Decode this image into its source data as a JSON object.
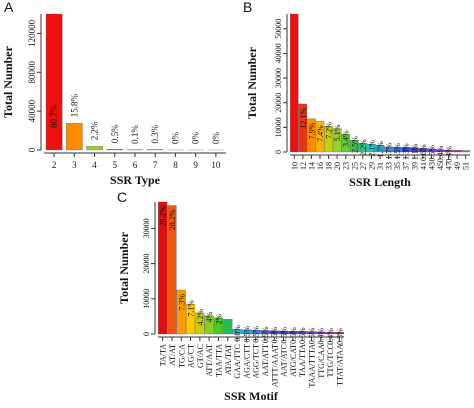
{
  "chart_data": [
    {
      "panel": "A",
      "type": "bar",
      "xlabel": "SSR Type",
      "ylabel": "Total Number",
      "categories": [
        "2",
        "3",
        "4",
        "5",
        "6",
        "7",
        "8",
        "9",
        "10"
      ],
      "values": [
        140000,
        27500,
        3900,
        900,
        180,
        500,
        40,
        20,
        10
      ],
      "labels": [
        "80.7%",
        "15.8%",
        "2.2%",
        "0.5%",
        "0.1%",
        "0.3%",
        "0%",
        "0%",
        "0%"
      ],
      "colors": [
        "#ee1111",
        "#ff8c00",
        "#9acd32",
        "#3cd070",
        "#20c5c5",
        "#2f6fe0",
        "#5a34c8",
        "#a020f0",
        "#c020a0"
      ],
      "yticks": [
        0,
        40000,
        80000,
        120000
      ],
      "ylim": [
        0,
        140000
      ]
    },
    {
      "panel": "B",
      "type": "bar",
      "xlabel": "SSR Length",
      "ylabel": "Total Number",
      "categories": [
        "10",
        "12",
        "14",
        "16",
        "18",
        "20",
        "22",
        "24",
        "26",
        "28",
        "30",
        "32",
        "34",
        "36",
        "38",
        "40",
        "42",
        "44",
        "46",
        "48",
        "50"
      ],
      "categories_shown": [
        "10",
        "12",
        "14",
        "16",
        "18",
        "20",
        "22",
        "24",
        "26",
        "28",
        "30",
        "32",
        "34",
        "36",
        "38",
        "40",
        "42",
        "44",
        "46",
        "48",
        "50"
      ],
      "tick_labels": [
        "10",
        "12",
        "14",
        "16",
        "18",
        "20",
        "23",
        "25",
        "27",
        "29",
        "31",
        "33",
        "35",
        "37",
        "39",
        "41",
        "43",
        "45",
        "47",
        "49",
        "51"
      ],
      "values": [
        56000,
        19500,
        13500,
        12500,
        10500,
        9500,
        7200,
        4800,
        3600,
        3200,
        2800,
        2100,
        2000,
        1900,
        1800,
        1500,
        1300,
        1000,
        800,
        700,
        650
      ],
      "labels": [
        "",
        "12.1%",
        "7.9%",
        "7.4%",
        "7.2%",
        "5.1%",
        "3.4%",
        "2.5%",
        "2.2%",
        "2.1%",
        "1.7%",
        "1.7%",
        "1.5%",
        "1.3%",
        "1.1%",
        "0.6%",
        "0.5%",
        "0.4%",
        "0.4%",
        "",
        ""
      ],
      "colors": [
        "#ee1111",
        "#ee3311",
        "#ff8c00",
        "#ffb000",
        "#c8d000",
        "#9acd32",
        "#66cc33",
        "#33cc44",
        "#22cc88",
        "#20c5c5",
        "#22aadd",
        "#2f8fe0",
        "#2f6fe0",
        "#3344dd",
        "#4433cc",
        "#5a34c8",
        "#7a30d0",
        "#a020f0",
        "#c020c0",
        "#c020a0",
        ""
      ],
      "yticks": [
        0,
        10000,
        20000,
        30000,
        40000,
        50000
      ],
      "ylim": [
        0,
        56000
      ]
    },
    {
      "panel": "C",
      "type": "bar",
      "xlabel": "SSR Motif",
      "ylabel": "Total Number",
      "categories": [
        "TA/TA",
        "AT/AT",
        "TG/CA",
        "AG/CT",
        "GT/AC",
        "ATT/AAT",
        "TAA/TTA",
        "ATA/TAT",
        "GAA/TTC",
        "AGA/TCT",
        "AGG/CCT",
        "AAT/ATT",
        "ATTT/AAAT",
        "AAT/ATC",
        "ATG/CAT",
        "TAAA/TTTA",
        "TAA/TTA",
        "TTG/CAA",
        "AAA/TTT",
        "TTAT/ATAA"
      ],
      "tick_labels": [
        "TA/TA",
        "AT/AT",
        "TG/CA",
        "AG/CT",
        "GT/AC",
        "ATT/AAT",
        "TAA/TTA",
        "ATA/TAT",
        "GAA/TTC",
        "AGA/CTT",
        "AGG/TCT",
        "AAT/ATT",
        "ATTT/AAAT",
        "AAT/ATC",
        "ATG/CAT",
        "TAA/TTA",
        "TAAA/TTTA",
        "TTG/CAA",
        "TTG/TCC",
        "TTAT/ATAA"
      ],
      "values": [
        37500,
        36500,
        12500,
        8500,
        6000,
        5200,
        4600,
        4200,
        1400,
        1200,
        1100,
        1000,
        900,
        850,
        800,
        750,
        700,
        600,
        550,
        500
      ],
      "labels": [
        "29.2%",
        "28.2%",
        "7.3%",
        "7.1%",
        "4.2%",
        "4%",
        "2%",
        "",
        "0.8%",
        "0.5%",
        "0.5%",
        "0.5%",
        "0.5%",
        "0.5%",
        "0.5%",
        "0.5%",
        "0.5%",
        "0.4%",
        "0.4%",
        "0.3%"
      ],
      "colors": [
        "#dd1111",
        "#ee5511",
        "#ff9900",
        "#ffc800",
        "#c8d000",
        "#88cc22",
        "#44cc22",
        "#22bb55",
        "#22c5c5",
        "#22aadd",
        "#3388dd",
        "#3366dd",
        "#3344cc",
        "#4433bb",
        "#5533bb",
        "#6633c0",
        "#8830c8",
        "#a020d0",
        "#c020b0",
        "#c02090"
      ],
      "yticks": [
        0,
        10000,
        20000,
        30000
      ],
      "ylim": [
        0,
        37500
      ]
    }
  ],
  "panel_labels": [
    "A",
    "B",
    "C"
  ]
}
